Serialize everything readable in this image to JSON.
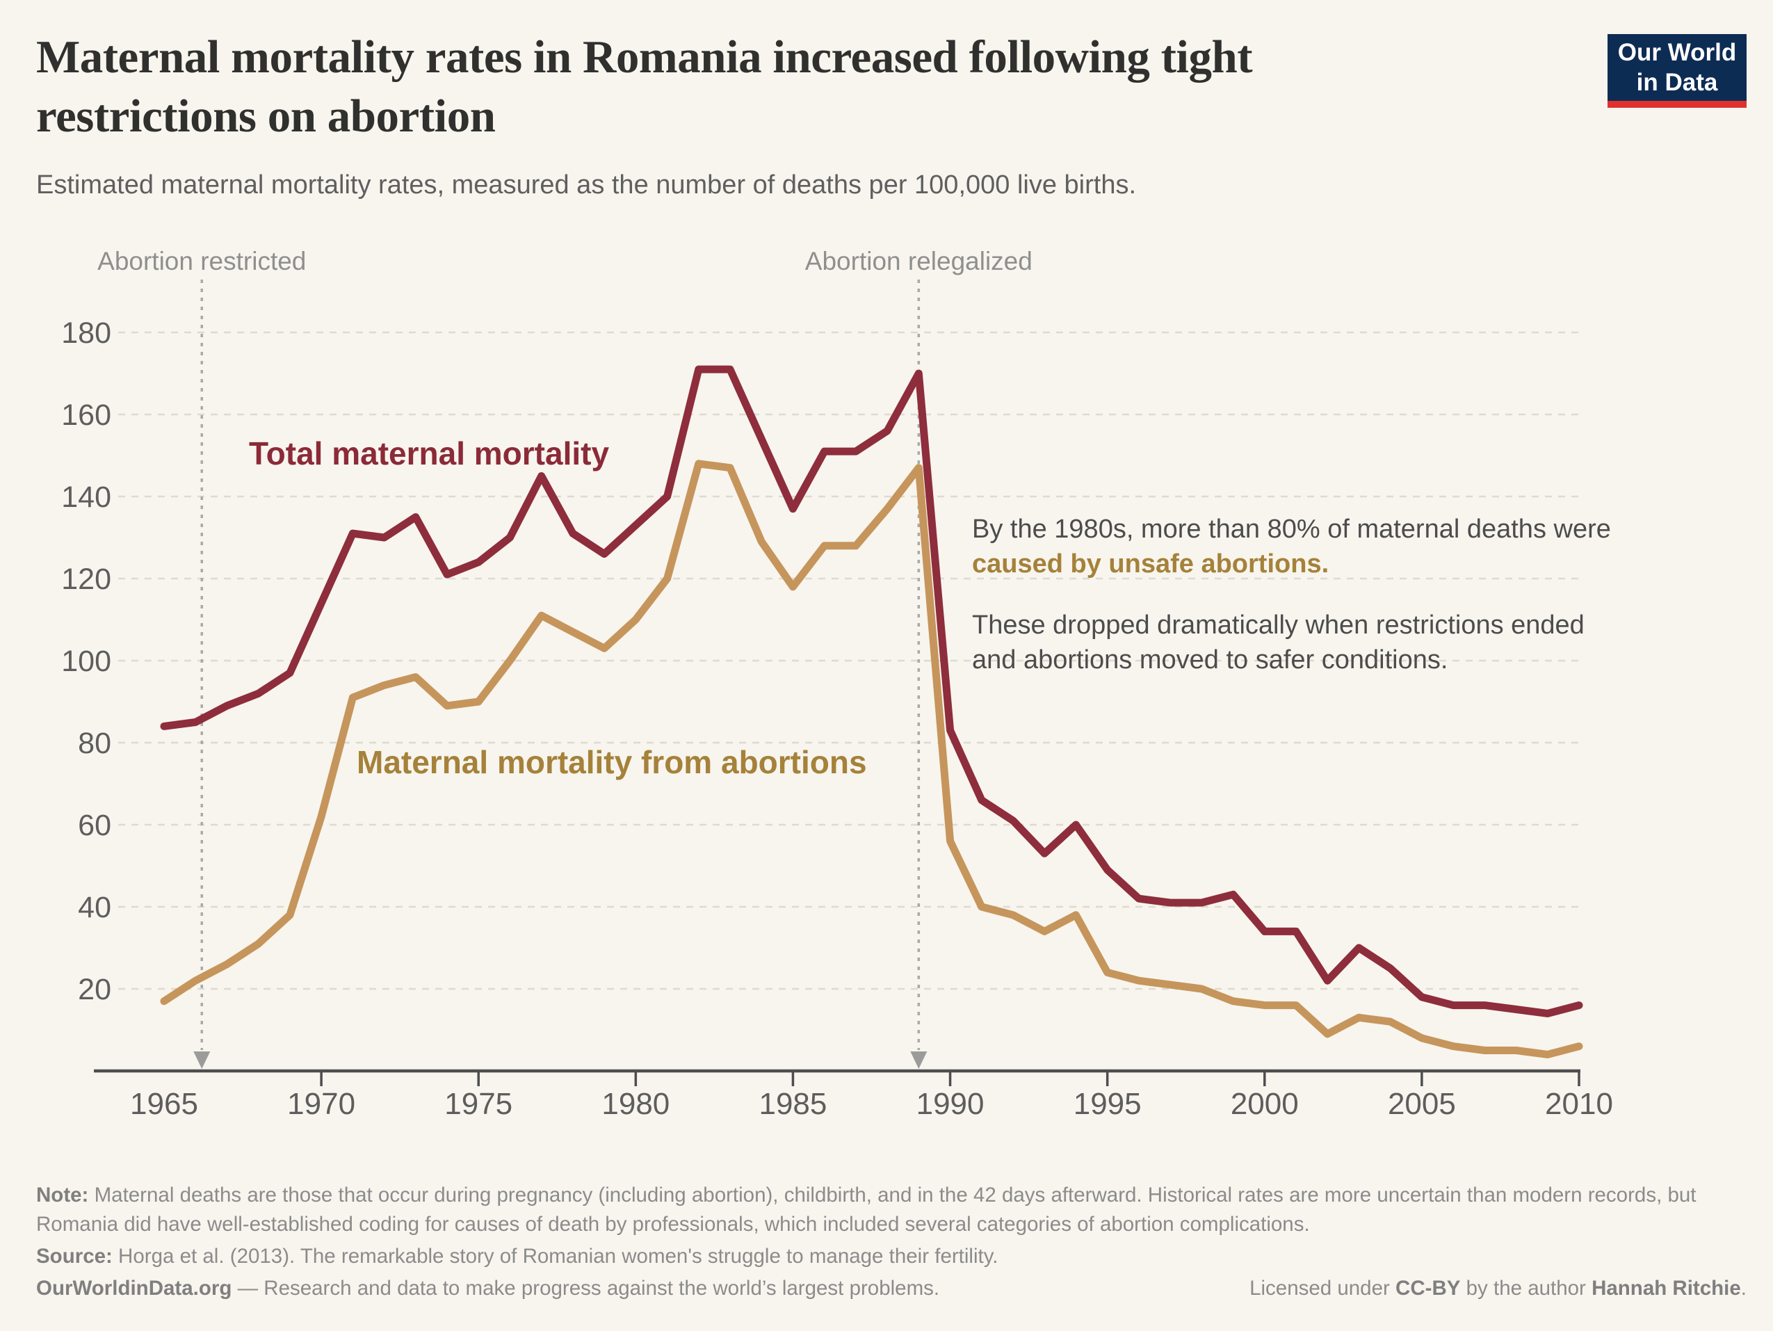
{
  "logo": {
    "line1": "Our World",
    "line2": "in Data",
    "bg_color": "#0d2c54",
    "accent_color": "#e0312e"
  },
  "header": {
    "title_lines": [
      "Maternal mortality rates in Romania increased following tight",
      "restrictions on abortion"
    ],
    "subtitle": "Estimated maternal mortality rates, measured as the number of deaths per 100,000 live births."
  },
  "annotation_block": {
    "line1": "By the 1980s, more than 80% of maternal deaths were",
    "line2": "caused by unsafe abortions.",
    "line3": "These dropped dramatically when restrictions ended",
    "line4": "and abortions moved to safer conditions."
  },
  "chart_data": {
    "type": "line",
    "title": "Maternal mortality rates in Romania increased following tight restrictions on abortion",
    "xlabel": "",
    "ylabel": "Deaths per 100,000 live births",
    "grid": true,
    "ylim": [
      0,
      190
    ],
    "yticks": [
      20,
      40,
      60,
      80,
      100,
      120,
      140,
      160,
      180
    ],
    "xticks": [
      1965,
      1970,
      1975,
      1980,
      1985,
      1990,
      1995,
      2000,
      2005,
      2010
    ],
    "x": [
      1965,
      1966,
      1967,
      1968,
      1969,
      1970,
      1971,
      1972,
      1973,
      1974,
      1975,
      1976,
      1977,
      1978,
      1979,
      1980,
      1981,
      1982,
      1983,
      1984,
      1985,
      1986,
      1987,
      1988,
      1989,
      1990,
      1991,
      1992,
      1993,
      1994,
      1995,
      1996,
      1997,
      1998,
      1999,
      2000,
      2001,
      2002,
      2003,
      2004,
      2005,
      2006,
      2007,
      2008,
      2009,
      2010
    ],
    "series": [
      {
        "name": "Total maternal mortality",
        "color": "#8e2d3c",
        "label_color": "#8b2a38",
        "values": [
          84,
          85,
          89,
          92,
          97,
          114,
          131,
          130,
          135,
          121,
          124,
          130,
          145,
          131,
          126,
          133,
          140,
          171,
          171,
          154,
          137,
          151,
          151,
          156,
          170,
          83,
          66,
          61,
          53,
          60,
          49,
          42,
          41,
          41,
          43,
          34,
          34,
          22,
          30,
          25,
          18,
          16,
          16,
          15,
          14,
          16
        ]
      },
      {
        "name": "Maternal mortality from abortions",
        "color": "#c6955c",
        "label_color": "#a5813a",
        "values": [
          17,
          22,
          26,
          31,
          38,
          62,
          91,
          94,
          96,
          89,
          90,
          100,
          111,
          107,
          103,
          110,
          120,
          148,
          147,
          129,
          118,
          128,
          128,
          137,
          147,
          56,
          40,
          38,
          34,
          38,
          24,
          22,
          21,
          20,
          17,
          16,
          16,
          9,
          13,
          12,
          8,
          6,
          5,
          5,
          4,
          6
        ]
      }
    ],
    "event_lines": [
      {
        "label": "Abortion restricted",
        "x": 1966.2
      },
      {
        "label": "Abortion relegalized",
        "x": 1989
      }
    ],
    "legend_position": "inline-labels"
  },
  "footer": {
    "note_label": "Note:",
    "note_text": "Maternal deaths are those that occur during pregnancy (including abortion), childbirth, and in the 42 days afterward. Historical rates are more uncertain than modern records, but Romania did have well-established coding for causes of death by professionals, which included several categories of abortion complications.",
    "source_label": "Source:",
    "source_text": "Horga et al. (2013). The remarkable story of Romanian women's struggle to manage their fertility.",
    "site": "OurWorldinData.org",
    "site_tagline": "— Research and data to make progress against the world’s largest problems.",
    "license_prefix": "Licensed under",
    "license_name": "CC-BY",
    "license_middle": "by the author",
    "license_author": "Hannah Ritchie",
    "license_suffix": "."
  }
}
